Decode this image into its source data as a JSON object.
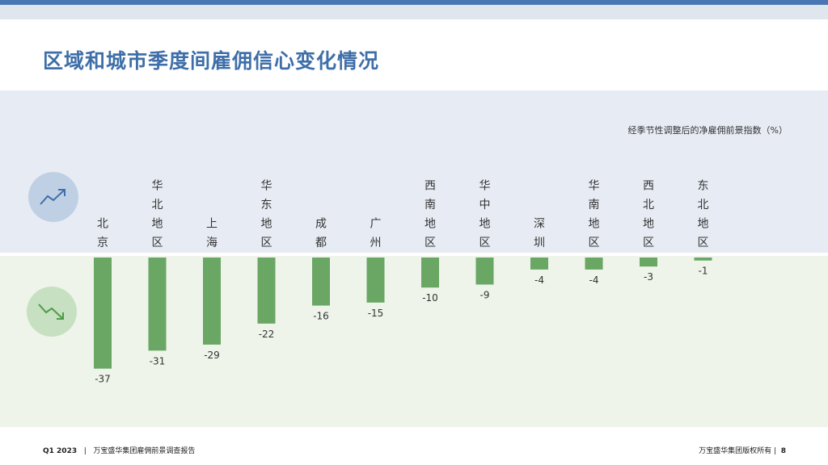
{
  "title": "区域和城市季度间雇佣信心变化情况",
  "footer": {
    "quarter": "Q1 2023",
    "separator": "|",
    "report": "万宝盛华集团雇佣前景调查报告",
    "copyright": "万宝盛华集团版权所有 |",
    "page": "8"
  },
  "icons": {
    "up": "trend-up-icon",
    "down": "trend-down-icon"
  },
  "colors": {
    "bar": "#6aa664",
    "title": "#3f6fa8",
    "positive_band": "#e7ecf4",
    "negative_band": "#eef4ea"
  },
  "chart_data": {
    "type": "bar",
    "title": "区域和城市季度间雇佣信心变化情况",
    "ylabel": "经季节性调整后的净雇佣前景指数（%）",
    "categories": [
      "北京",
      "华北地区",
      "上海",
      "华东地区",
      "成都",
      "广州",
      "西南地区",
      "华中地区",
      "深圳",
      "华南地区",
      "西北地区",
      "东北地区"
    ],
    "values": [
      -37,
      -31,
      -29,
      -22,
      -16,
      -15,
      -10,
      -9,
      -4,
      -4,
      -3,
      -1
    ],
    "ylim": [
      -40,
      0
    ],
    "grid": false,
    "legend": "none"
  }
}
